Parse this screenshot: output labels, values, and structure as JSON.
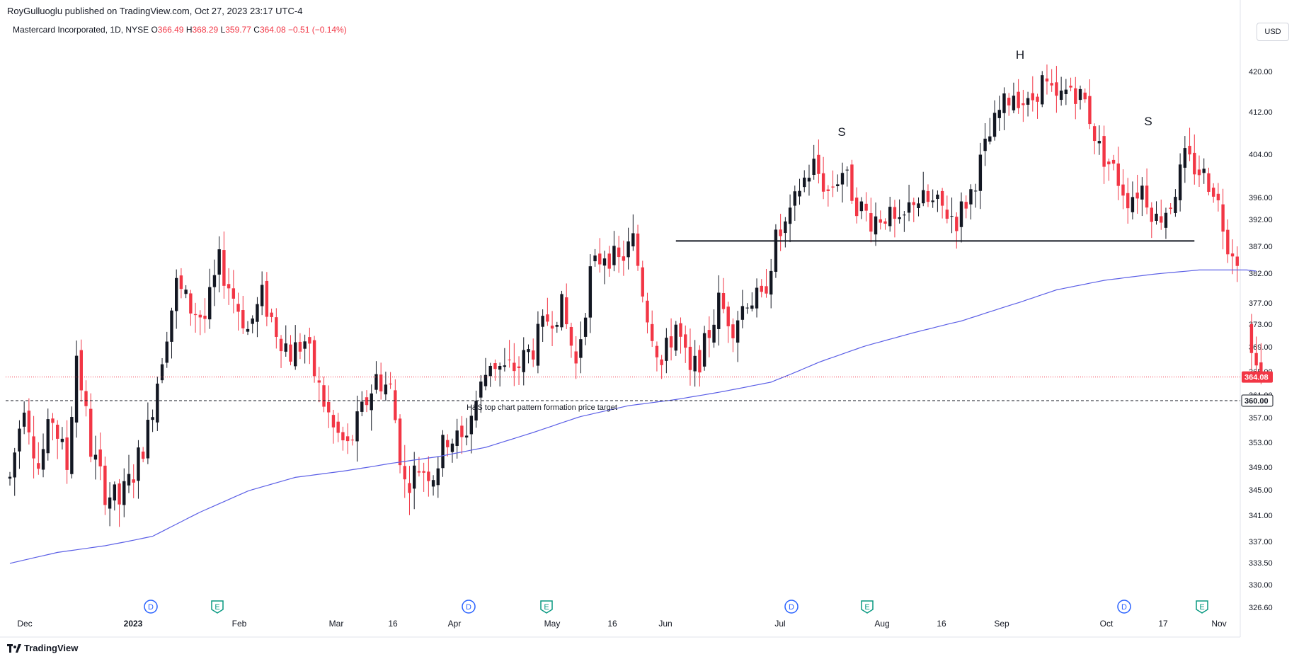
{
  "publisher": "RoyGulluoglu published on TradingView.com, Oct 27, 2023 23:17 UTC-4",
  "legend": {
    "symbol": "Mastercard Incorporated, 1D, NYSE",
    "o_label": "O",
    "o": "366.49",
    "h_label": "H",
    "h": "368.29",
    "l_label": "L",
    "l": "359.77",
    "c_label": "C",
    "c": "364.08",
    "change": "−0.51 (−0.14%)"
  },
  "currency": "USD",
  "footer": {
    "brand": "TradingView",
    "logo_icon": "tradingview-logo-icon"
  },
  "colors": {
    "up": "#131722",
    "down": "#f23645",
    "ma": "#5b5fe6",
    "price_tag": "#f23645",
    "target_tag": "#131722"
  },
  "chart_data": {
    "type": "candlestick",
    "price_axis": [
      420.0,
      412.0,
      404.0,
      396.0,
      392.0,
      387.0,
      382.0,
      377.0,
      373.0,
      369.0,
      365.0,
      361.0,
      357.0,
      353.0,
      349.0,
      345.0,
      341.0,
      337.0,
      333.5,
      330.0,
      326.6
    ],
    "time_axis": [
      {
        "label": "Dec",
        "bold": false
      },
      {
        "label": "2023",
        "bold": true
      },
      {
        "label": "Feb",
        "bold": false
      },
      {
        "label": "Mar",
        "bold": false
      },
      {
        "label": "16",
        "bold": false
      },
      {
        "label": "Apr",
        "bold": false
      },
      {
        "label": "May",
        "bold": false
      },
      {
        "label": "16",
        "bold": false
      },
      {
        "label": "Jun",
        "bold": false
      },
      {
        "label": "Jul",
        "bold": false
      },
      {
        "label": "Aug",
        "bold": false
      },
      {
        "label": "16",
        "bold": false
      },
      {
        "label": "Sep",
        "bold": false
      },
      {
        "label": "Oct",
        "bold": false
      },
      {
        "label": "17",
        "bold": false
      },
      {
        "label": "Nov",
        "bold": false
      }
    ],
    "last_price": "364.08",
    "target_price": "360.00",
    "neckline": 388.0,
    "pattern_labels": [
      {
        "text": "S",
        "price": 407.5
      },
      {
        "text": "H",
        "price": 422.5
      },
      {
        "text": "S",
        "price": 409.5
      }
    ],
    "target_annotation": "H&S top chart pattern formation price target",
    "events": [
      "D",
      "E",
      "D",
      "E",
      "D",
      "E",
      "D",
      "E"
    ],
    "series": [
      {
        "name": "price",
        "anchors": [
          [
            0,
            347
          ],
          [
            3,
            360
          ],
          [
            6,
            349
          ],
          [
            9,
            357
          ],
          [
            12,
            349
          ],
          [
            14,
            368
          ],
          [
            17,
            352
          ],
          [
            20,
            345
          ],
          [
            23,
            343
          ],
          [
            26,
            348
          ],
          [
            29,
            355
          ],
          [
            32,
            368
          ],
          [
            35,
            380
          ],
          [
            38,
            376
          ],
          [
            41,
            374
          ],
          [
            44,
            384
          ],
          [
            47,
            378
          ],
          [
            50,
            372
          ],
          [
            53,
            378
          ],
          [
            56,
            372
          ],
          [
            59,
            368
          ],
          [
            62,
            370
          ],
          [
            65,
            362
          ],
          [
            68,
            355
          ],
          [
            71,
            352
          ],
          [
            74,
            358
          ],
          [
            77,
            364
          ],
          [
            80,
            362
          ],
          [
            83,
            346
          ],
          [
            86,
            349
          ],
          [
            89,
            348
          ],
          [
            92,
            354
          ],
          [
            95,
            353
          ],
          [
            98,
            360
          ],
          [
            101,
            367
          ],
          [
            104,
            365
          ],
          [
            107,
            366
          ],
          [
            110,
            369
          ],
          [
            113,
            374
          ],
          [
            116,
            376
          ],
          [
            119,
            366
          ],
          [
            122,
            382
          ],
          [
            125,
            386
          ],
          [
            128,
            384
          ],
          [
            131,
            388
          ],
          [
            134,
            375
          ],
          [
            137,
            366
          ],
          [
            140,
            373
          ],
          [
            143,
            364
          ],
          [
            146,
            369
          ],
          [
            149,
            377
          ],
          [
            152,
            373
          ],
          [
            155,
            378
          ],
          [
            158,
            377
          ],
          [
            161,
            388
          ],
          [
            164,
            392
          ],
          [
            166,
            398
          ],
          [
            169,
            402
          ],
          [
            172,
            397
          ],
          [
            175,
            401
          ],
          [
            178,
            395
          ],
          [
            181,
            392
          ],
          [
            184,
            393
          ],
          [
            187,
            390
          ],
          [
            190,
            396
          ],
          [
            193,
            395
          ],
          [
            196,
            394
          ],
          [
            199,
            392
          ],
          [
            202,
            397
          ],
          [
            205,
            405
          ],
          [
            208,
            412
          ],
          [
            211,
            416
          ],
          [
            214,
            413
          ],
          [
            217,
            418
          ],
          [
            220,
            414
          ],
          [
            223,
            417
          ],
          [
            226,
            414
          ],
          [
            229,
            405
          ],
          [
            232,
            401
          ],
          [
            235,
            396
          ],
          [
            238,
            398
          ],
          [
            241,
            392
          ],
          [
            244,
            395
          ],
          [
            247,
            403
          ],
          [
            250,
            401
          ],
          [
            253,
            398
          ],
          [
            256,
            388
          ],
          [
            259,
            384
          ],
          [
            261,
            372
          ],
          [
            263,
            364
          ]
        ]
      },
      {
        "name": "moving-average",
        "anchors": [
          [
            0,
            333.4
          ],
          [
            10,
            335.2
          ],
          [
            20,
            336.3
          ],
          [
            30,
            337.8
          ],
          [
            40,
            341.5
          ],
          [
            50,
            344.8
          ],
          [
            60,
            347.2
          ],
          [
            70,
            348.3
          ],
          [
            80,
            349.6
          ],
          [
            90,
            350.7
          ],
          [
            100,
            352.2
          ],
          [
            110,
            354.6
          ],
          [
            120,
            357.2
          ],
          [
            130,
            359.1
          ],
          [
            140,
            360.2
          ],
          [
            150,
            361.6
          ],
          [
            160,
            363.2
          ],
          [
            170,
            366.5
          ],
          [
            180,
            369.2
          ],
          [
            190,
            371.5
          ],
          [
            200,
            373.6
          ],
          [
            210,
            376.5
          ],
          [
            220,
            379.2
          ],
          [
            230,
            380.8
          ],
          [
            240,
            381.8
          ],
          [
            250,
            382.6
          ],
          [
            260,
            382.6
          ],
          [
            263,
            382.3
          ]
        ]
      }
    ]
  }
}
